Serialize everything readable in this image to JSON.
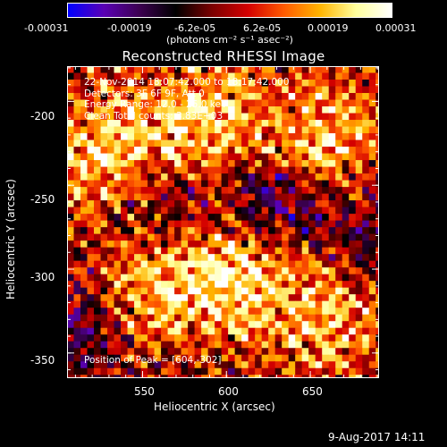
{
  "colorbar": {
    "ticks": [
      "-0.00031",
      "-0.00019",
      "-6.2e-05",
      "6.2e-05",
      "0.00019",
      "0.00031"
    ],
    "tick_values": [
      -0.00031,
      -0.00019,
      -6.2e-05,
      6.2e-05,
      0.00019,
      0.00031
    ],
    "units_text": "(photons cm⁻² s⁻¹ asec⁻²)",
    "colormap": [
      "#0000ff",
      "#5a00b4",
      "#3c0050",
      "#000000",
      "#7a0000",
      "#d40000",
      "#ff5a00",
      "#ffb400",
      "#ffff9c",
      "#ffffff"
    ]
  },
  "header": {
    "title": "Reconstructed RHESSI Image"
  },
  "info": {
    "line1": "22-Nov-2014 18:07:42.000 to 18:17:42.000",
    "line2": "Detectors: 3F 6F 9F, Att 0",
    "line3": "Energy Range: 12.0 - 25.0 keV",
    "line4": "Clean    Total counts: 3.83E+03",
    "peak": "Position of Peak = [604,-302]"
  },
  "footer": {
    "date": "9-Aug-2017 14:11"
  },
  "chart_data": {
    "type": "heatmap",
    "title": "Reconstructed RHESSI Image",
    "xlabel": "Heliocentric X (arcsec)",
    "ylabel": "Heliocentric Y (arcsec)",
    "xlim": [
      505,
      691
    ],
    "ylim": [
      -365,
      -179
    ],
    "x_ticks": [
      "550",
      "600",
      "650"
    ],
    "x_tick_values": [
      550,
      600,
      650
    ],
    "y_ticks": [
      "-200",
      "-250",
      "-300",
      "-350"
    ],
    "y_tick_values": [
      -200,
      -250,
      -300,
      -350
    ],
    "grid": false,
    "pixel_size_arcsec": 4,
    "peak_position": [
      604,
      -302
    ],
    "value_range": [
      -0.00031,
      0.00031
    ],
    "bright_regions": [
      {
        "x": 528,
        "y": -230,
        "strength": 0.9
      },
      {
        "x": 590,
        "y": -210,
        "strength": 0.85
      },
      {
        "x": 604,
        "y": -302,
        "strength": 1.0
      },
      {
        "x": 550,
        "y": -310,
        "strength": 0.8
      },
      {
        "x": 660,
        "y": -225,
        "strength": 0.85
      },
      {
        "x": 665,
        "y": -330,
        "strength": 0.75
      }
    ],
    "dark_regions": [
      {
        "x": 625,
        "y": -260,
        "strength": 0.8
      },
      {
        "x": 560,
        "y": -265,
        "strength": 0.6
      },
      {
        "x": 515,
        "y": -330,
        "strength": 0.55
      },
      {
        "x": 680,
        "y": -280,
        "strength": 0.5
      }
    ]
  }
}
